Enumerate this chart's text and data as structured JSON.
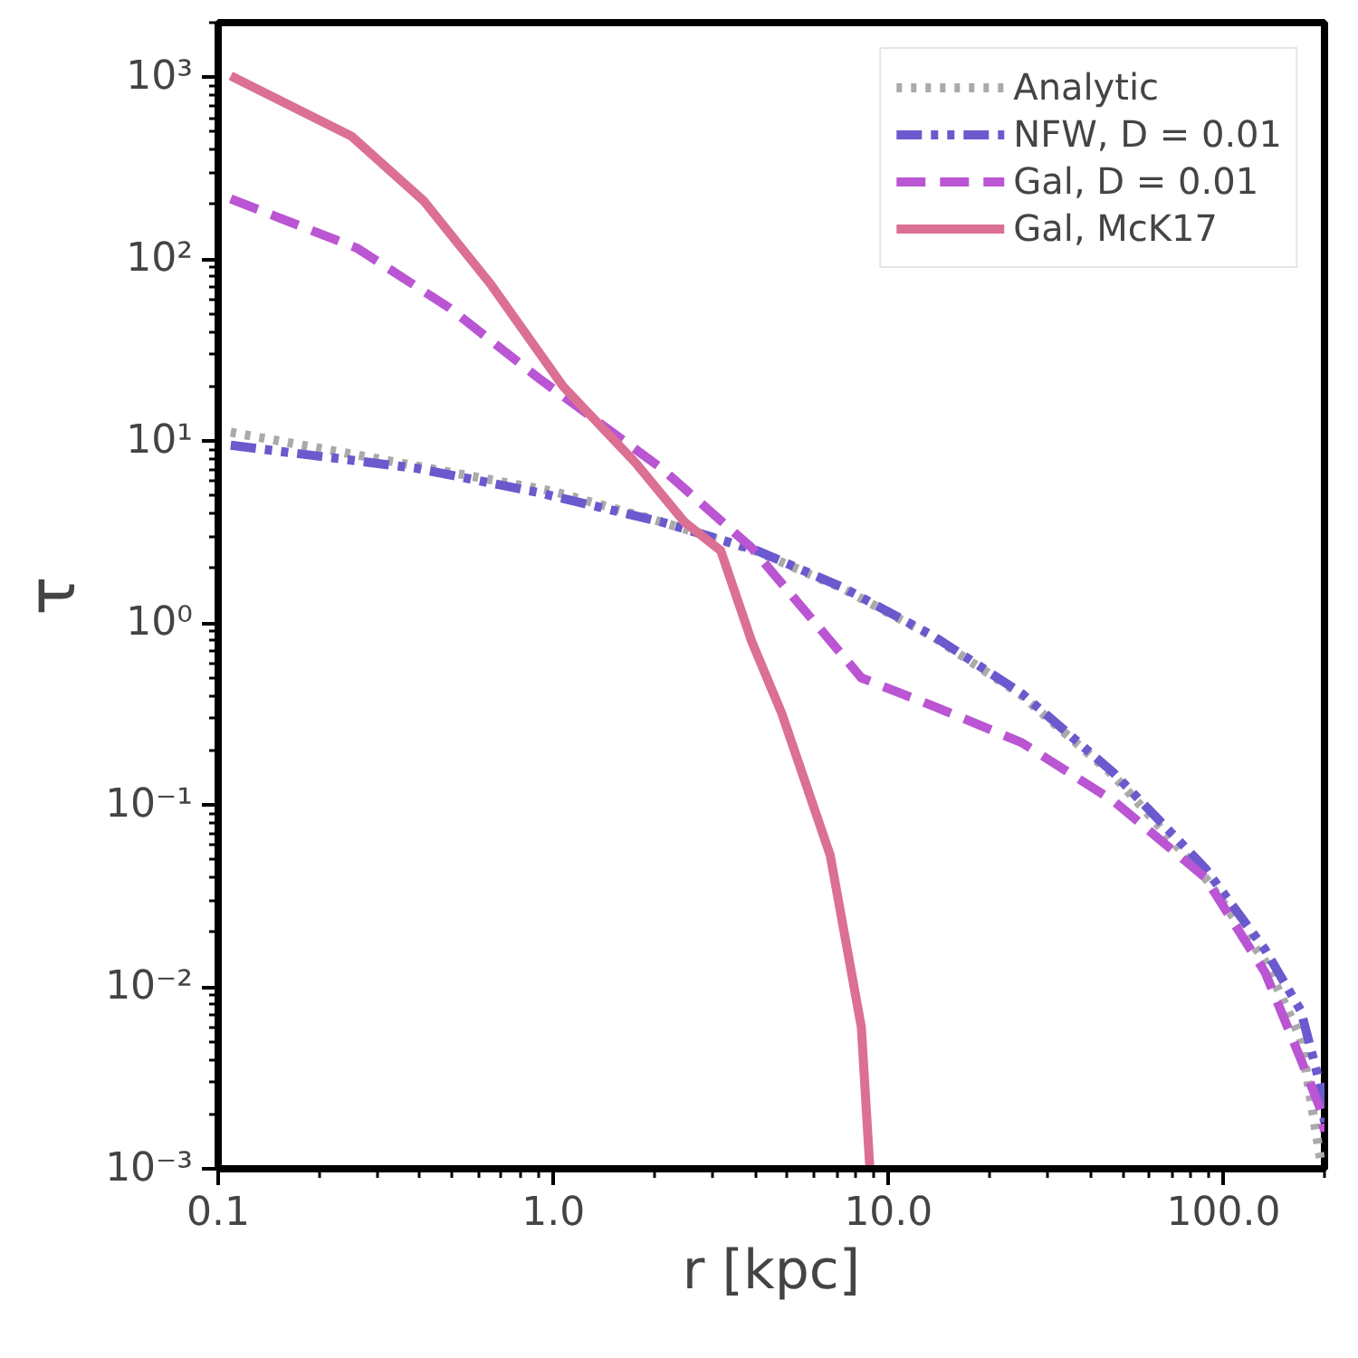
{
  "chart_data": {
    "type": "line",
    "xlabel": "r [kpc]",
    "ylabel": "τ",
    "log": "xy",
    "grid": false,
    "legend": "top right",
    "xlim": [
      0.1,
      200
    ],
    "ylim": [
      0.001,
      2000
    ],
    "xticks": [
      {
        "value": 0.1,
        "label": "0.1"
      },
      {
        "value": 1,
        "label": "1.0"
      },
      {
        "value": 10,
        "label": "10.0"
      },
      {
        "value": 100,
        "label": "100.0"
      }
    ],
    "yticks": [
      {
        "value": 0.001,
        "label": "10⁻³"
      },
      {
        "value": 0.01,
        "label": "10⁻²"
      },
      {
        "value": 0.1,
        "label": "10⁻¹"
      },
      {
        "value": 1,
        "label": "10⁰"
      },
      {
        "value": 10,
        "label": "10¹"
      },
      {
        "value": 100,
        "label": "10²"
      },
      {
        "value": 1000,
        "label": "10³"
      }
    ],
    "series": [
      {
        "name": "Analytic",
        "color": "#aaaaaa",
        "line_style": "dotted",
        "x": [
          0.109,
          0.3,
          1,
          2,
          4,
          7.3,
          13.6,
          25,
          47,
          88,
          133,
          170,
          195
        ],
        "values": [
          11.2,
          8.0,
          5.3,
          3.7,
          2.5,
          1.55,
          0.84,
          0.4,
          0.145,
          0.04,
          0.0138,
          0.0052,
          0.0011
        ]
      },
      {
        "name": "NFW, D = 0.01",
        "color": "#6a5acd",
        "line_style": "dashdot",
        "x": [
          0.109,
          0.39,
          0.91,
          2.1,
          4.06,
          7.3,
          13.6,
          25,
          47,
          88,
          133,
          170,
          195,
          200
        ],
        "values": [
          9.5,
          7.1,
          5.2,
          3.6,
          2.5,
          1.57,
          0.85,
          0.41,
          0.15,
          0.045,
          0.016,
          0.0074,
          0.0028,
          0.0018
        ]
      },
      {
        "name": "Gal, D = 0.01",
        "color": "#ba55d3",
        "line_style": "dashed",
        "x": [
          0.109,
          0.26,
          0.49,
          0.91,
          2.1,
          3.9,
          6.7,
          8.3,
          13.6,
          25,
          47,
          88,
          133,
          170,
          195,
          200
        ],
        "values": [
          215,
          115,
          54,
          22,
          7.1,
          2.6,
          0.8,
          0.5,
          0.35,
          0.22,
          0.105,
          0.04,
          0.012,
          0.004,
          0.0021,
          0.0016
        ]
      },
      {
        "name": "Gal, McK17",
        "color": "#db7093",
        "line_style": "solid",
        "x": [
          0.109,
          0.25,
          0.41,
          0.65,
          1.07,
          1.76,
          2.46,
          3.16,
          3.9,
          4.8,
          6.7,
          8.3,
          8.8
        ],
        "values": [
          1020,
          475,
          210,
          73,
          20,
          7.6,
          3.6,
          2.5,
          0.8,
          0.32,
          0.053,
          0.006,
          0.001
        ]
      }
    ]
  }
}
